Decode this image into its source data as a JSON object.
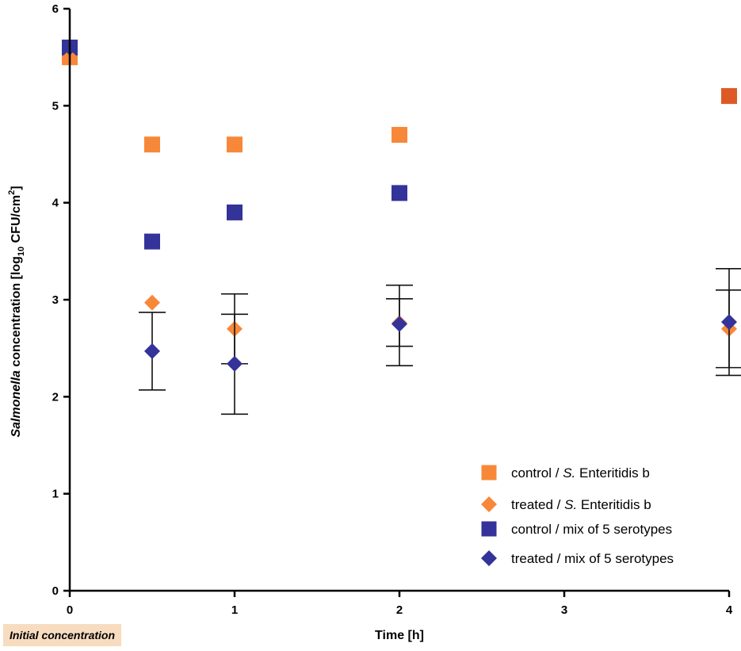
{
  "chart_data": {
    "type": "scatter",
    "title": "",
    "xlabel": "Time [h]",
    "ylabel": {
      "italic": "Salmonella",
      "text": " concentration [log",
      "sub": "10",
      "mid": " CFU/cm",
      "sup": "2",
      "end": "]"
    },
    "xlim": [
      0,
      4
    ],
    "ylim": [
      0,
      6
    ],
    "xticks": [
      "0",
      "1",
      "2",
      "3",
      "4"
    ],
    "yticks": [
      "0",
      "1",
      "2",
      "3",
      "4",
      "5",
      "6"
    ],
    "grid": false,
    "legend_position": "bottom-right",
    "series": [
      {
        "id": "cse",
        "name_pre": "control / ",
        "name_italic": "S.",
        "name_post": " Enteritidis b",
        "marker": "square",
        "color": "#f7883a",
        "points": [
          {
            "x": 0,
            "y": 5.5
          },
          {
            "x": 0.5,
            "y": 4.6
          },
          {
            "x": 1,
            "y": 4.6
          },
          {
            "x": 2,
            "y": 4.7
          },
          {
            "x": 4,
            "y": 5.1,
            "color": "#de5a24"
          }
        ]
      },
      {
        "id": "tse",
        "name_pre": "treated / ",
        "name_italic": "S.",
        "name_post": " Enteritidis b",
        "marker": "diamond",
        "color": "#f7883a",
        "points": [
          {
            "x": 0,
            "y": 5.5
          },
          {
            "x": 0.5,
            "y": 2.97
          },
          {
            "x": 1,
            "y": 2.7,
            "err": [
              2.34,
              3.06
            ]
          },
          {
            "x": 2,
            "y": 2.76,
            "err": [
              2.32,
              3.15
            ]
          },
          {
            "x": 4,
            "y": 2.7,
            "err": [
              2.3,
              3.1
            ]
          }
        ]
      },
      {
        "id": "cmix",
        "name_pre": "control / mix of 5 serotypes",
        "name_italic": "",
        "name_post": "",
        "marker": "square",
        "color": "#333399",
        "points": [
          {
            "x": 0,
            "y": 5.6
          },
          {
            "x": 0.5,
            "y": 3.6
          },
          {
            "x": 1,
            "y": 3.9
          },
          {
            "x": 2,
            "y": 4.1
          }
        ]
      },
      {
        "id": "tmix",
        "name_pre": "treated / mix of 5 serotypes",
        "name_italic": "",
        "name_post": "",
        "marker": "diamond",
        "color": "#333399",
        "points": [
          {
            "x": 0,
            "y": 5.6
          },
          {
            "x": 0.5,
            "y": 2.47,
            "err": [
              2.07,
              2.87
            ]
          },
          {
            "x": 1,
            "y": 2.34,
            "err": [
              1.82,
              2.85
            ]
          },
          {
            "x": 2,
            "y": 2.75,
            "err": [
              2.52,
              3.01
            ]
          },
          {
            "x": 4,
            "y": 2.77,
            "err": [
              2.22,
              3.32
            ]
          }
        ]
      }
    ],
    "annotation": "Initial concentration"
  }
}
